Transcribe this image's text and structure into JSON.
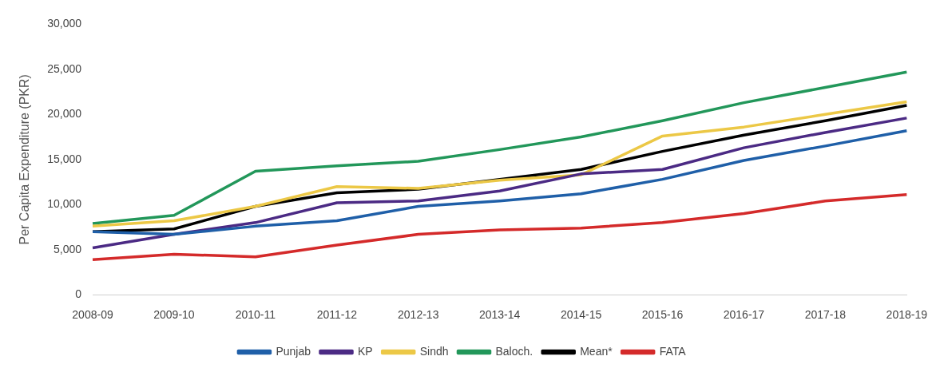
{
  "chart_data": {
    "type": "line",
    "ylabel": "Per Capita Expenditure (PKR)",
    "categories": [
      "2008-09",
      "2009-10",
      "2010-11",
      "2011-12",
      "2012-13",
      "2013-14",
      "2014-15",
      "2015-16",
      "2016-17",
      "2017-18",
      "2018-19"
    ],
    "ylim": [
      0,
      30000
    ],
    "yticks": [
      {
        "value": 0,
        "label": "0"
      },
      {
        "value": 5000,
        "label": "5,000"
      },
      {
        "value": 10000,
        "label": "10,000"
      },
      {
        "value": 15000,
        "label": "15,000"
      },
      {
        "value": 20000,
        "label": "20,000"
      },
      {
        "value": 25000,
        "label": "25,000"
      },
      {
        "value": 30000,
        "label": "30,000"
      }
    ],
    "grid": false,
    "legend": "bottom",
    "marker": "none",
    "line_style": "solid",
    "series": [
      {
        "name": "Punjab",
        "color": "#1f5fa8",
        "values": [
          7000,
          6700,
          7600,
          8200,
          9800,
          10400,
          11200,
          12800,
          14900,
          16500,
          18200
        ]
      },
      {
        "name": "KP",
        "color": "#4b2a84",
        "values": [
          5200,
          6700,
          8000,
          10200,
          10400,
          11500,
          13400,
          13900,
          16300,
          18000,
          19600
        ]
      },
      {
        "name": "Sindh",
        "color": "#ecc846",
        "values": [
          7600,
          8200,
          9800,
          12000,
          11800,
          12700,
          13300,
          17600,
          18600,
          20000,
          21400
        ]
      },
      {
        "name": "Baloch.",
        "color": "#22975a",
        "values": [
          7900,
          8800,
          13700,
          14300,
          14800,
          16100,
          17500,
          19300,
          21300,
          23000,
          24700
        ]
      },
      {
        "name": "Mean*",
        "color": "#000000",
        "values": [
          7000,
          7300,
          9800,
          11300,
          11700,
          12800,
          13900,
          15900,
          17700,
          19300,
          21000
        ]
      },
      {
        "name": "FATA",
        "color": "#d42a2a",
        "values": [
          3900,
          4500,
          4200,
          5500,
          6700,
          7200,
          7400,
          8000,
          9000,
          10400,
          11100
        ]
      }
    ]
  }
}
